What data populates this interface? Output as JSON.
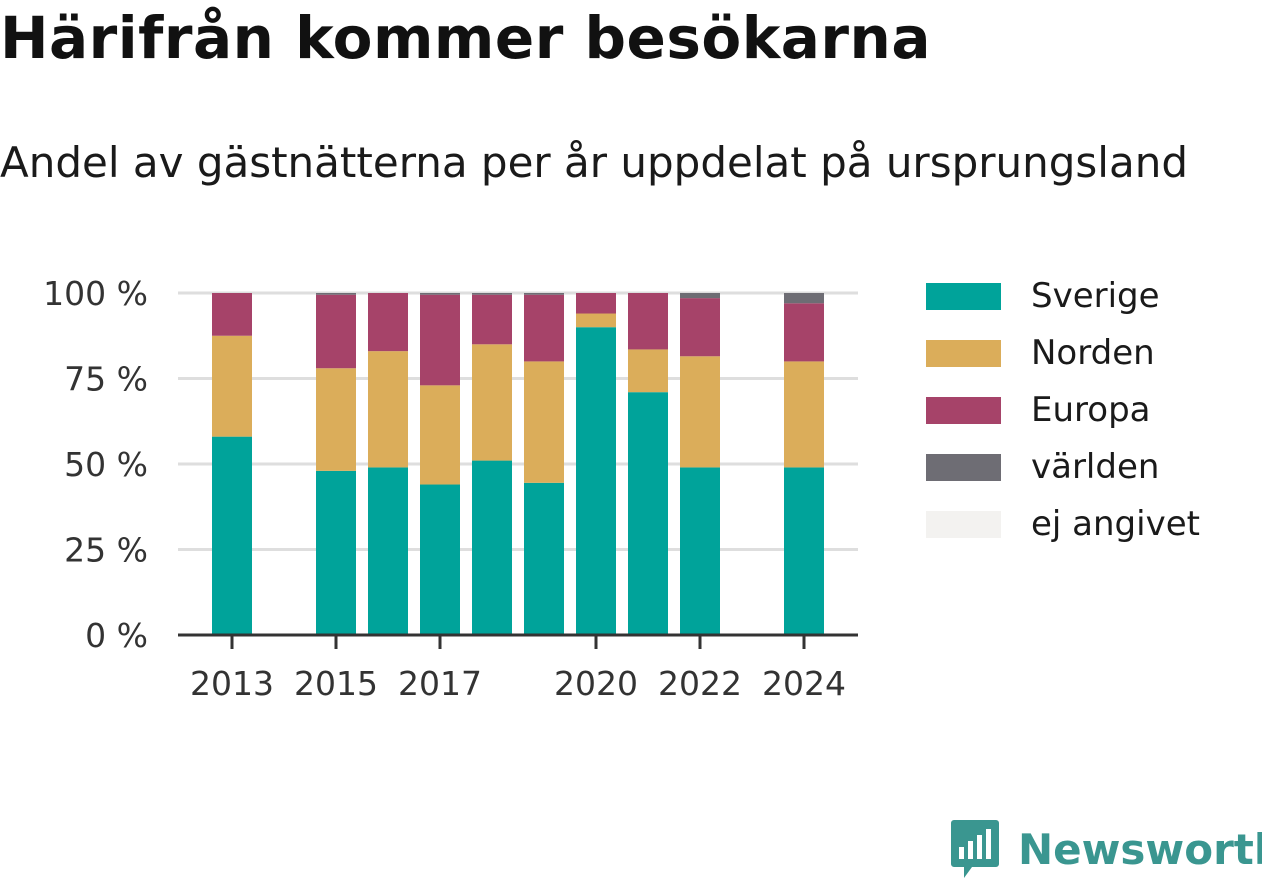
{
  "header": {
    "title": "Härifrån kommer besökarna",
    "subtitle": "Andel av gästnätterna per år uppdelat på ursprungsland"
  },
  "chart_data": {
    "type": "bar",
    "stacked": true,
    "x": [
      2013,
      2014,
      2015,
      2016,
      2017,
      2018,
      2019,
      2020,
      2021,
      2022,
      2023,
      2024
    ],
    "x_tick_labels": [
      "2013",
      "2015",
      "2017",
      "2020",
      "2022",
      "2024"
    ],
    "y_tick_labels": [
      "0 %",
      "25 %",
      "50 %",
      "75 %",
      "100 %"
    ],
    "y_ticks": [
      0,
      25,
      50,
      75,
      100
    ],
    "ylim": [
      0,
      100
    ],
    "grid": true,
    "legend_position": "right",
    "series": [
      {
        "name": "Sverige",
        "color": "#00a39a",
        "values": [
          58,
          null,
          48,
          49,
          44,
          51,
          44.5,
          90,
          71,
          49,
          null,
          49
        ]
      },
      {
        "name": "Norden",
        "color": "#dbad5a",
        "values": [
          29.5,
          null,
          30,
          34,
          29,
          34,
          35.5,
          4,
          12.5,
          32.5,
          null,
          31
        ]
      },
      {
        "name": "Europa",
        "color": "#a64369",
        "values": [
          12.5,
          null,
          21.5,
          17,
          26.5,
          14.5,
          19.5,
          6,
          16.5,
          17,
          null,
          17
        ]
      },
      {
        "name": "världen",
        "color": "#6e6d74",
        "values": [
          0,
          null,
          0.5,
          0,
          0.5,
          0.5,
          0.5,
          0,
          0,
          1.5,
          null,
          3
        ]
      },
      {
        "name": "ej angivet",
        "color": "#f3f2f0",
        "values": [
          0,
          null,
          0,
          0,
          0,
          0,
          0,
          0,
          0,
          0,
          null,
          0
        ]
      }
    ]
  },
  "brand": {
    "name": "Newsworthy",
    "icon": "newsworthy-logo-icon",
    "color": "#3a9690"
  }
}
